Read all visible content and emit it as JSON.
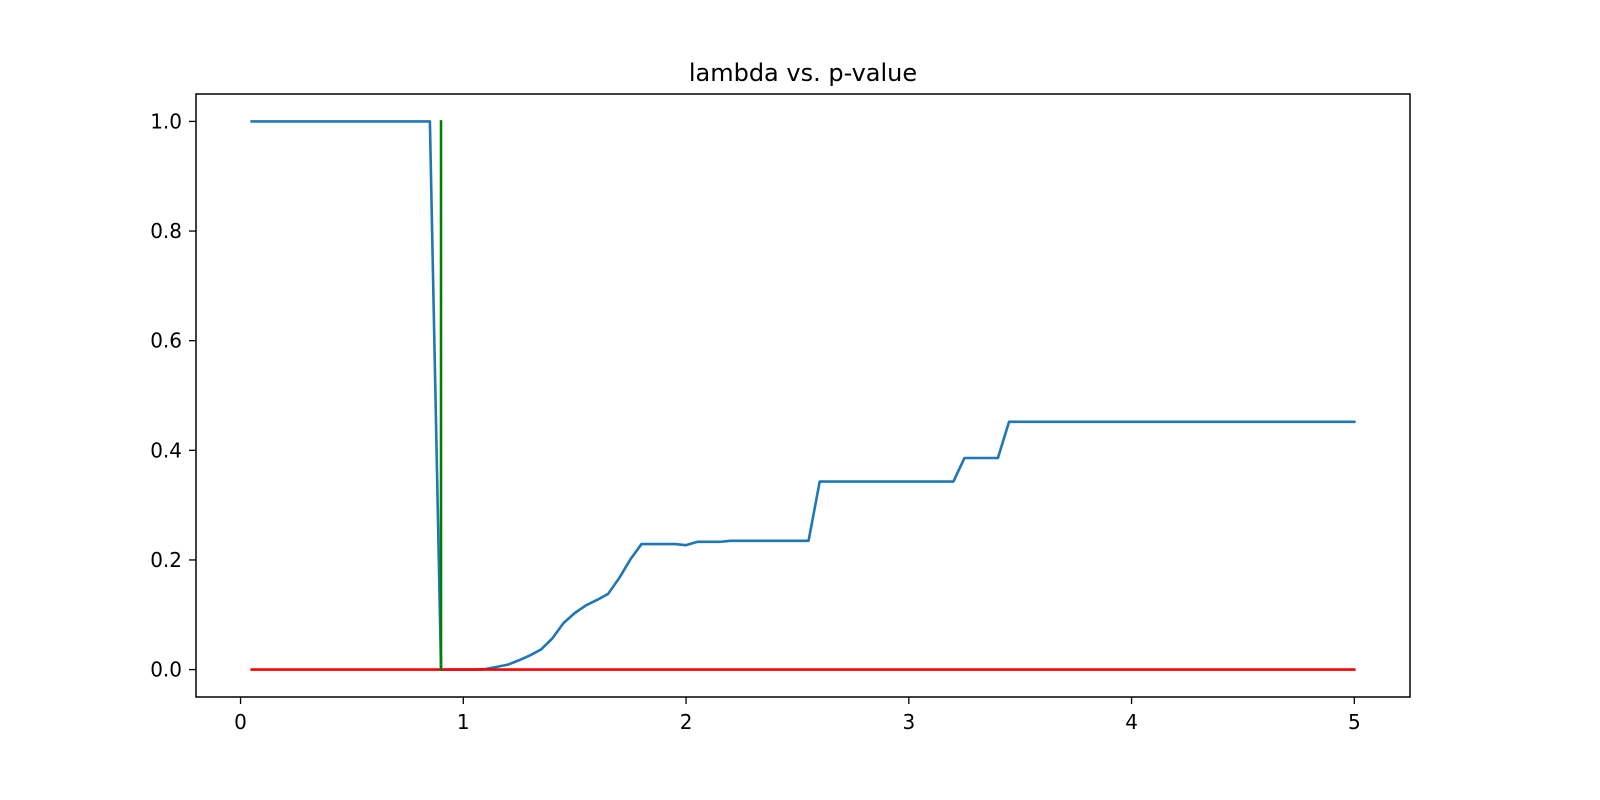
{
  "chart_data": {
    "type": "line",
    "title": "lambda vs. p-value",
    "xlabel": "",
    "ylabel": "",
    "xlim": [
      -0.2,
      5.25
    ],
    "ylim": [
      -0.05,
      1.05
    ],
    "x_ticks": [
      0,
      1,
      2,
      3,
      4,
      5
    ],
    "x_tick_labels": [
      "0",
      "1",
      "2",
      "3",
      "4",
      "5"
    ],
    "y_ticks": [
      0.0,
      0.2,
      0.4,
      0.6,
      0.8,
      1.0
    ],
    "y_tick_labels": [
      "0.0",
      "0.2",
      "0.4",
      "0.6",
      "0.8",
      "1.0"
    ],
    "grid": false,
    "legend": "none",
    "series": [
      {
        "color": "#1f77b4",
        "x": [
          0.05,
          0.85,
          0.9,
          0.95,
          1.0,
          1.05,
          1.1,
          1.15,
          1.2,
          1.25,
          1.3,
          1.35,
          1.4,
          1.45,
          1.5,
          1.55,
          1.6,
          1.65,
          1.7,
          1.75,
          1.8,
          1.85,
          1.9,
          1.95,
          2.0,
          2.05,
          2.1,
          2.15,
          2.2,
          2.25,
          2.3,
          2.35,
          2.4,
          2.45,
          2.5,
          2.55,
          2.6,
          2.65,
          2.7,
          2.75,
          2.8,
          2.85,
          2.9,
          2.95,
          3.0,
          3.05,
          3.1,
          3.15,
          3.2,
          3.25,
          3.3,
          3.35,
          3.4,
          3.45,
          3.5,
          3.6,
          3.8,
          4.0,
          4.2,
          4.4,
          4.6,
          4.8,
          5.0
        ],
        "y": [
          1.0,
          1.0,
          0.0,
          0.0,
          0.0,
          0.0,
          0.001,
          0.005,
          0.009,
          0.017,
          0.026,
          0.037,
          0.057,
          0.085,
          0.103,
          0.117,
          0.127,
          0.138,
          0.167,
          0.201,
          0.229,
          0.229,
          0.229,
          0.229,
          0.227,
          0.233,
          0.233,
          0.233,
          0.235,
          0.235,
          0.235,
          0.235,
          0.235,
          0.235,
          0.235,
          0.235,
          0.343,
          0.343,
          0.343,
          0.343,
          0.343,
          0.343,
          0.343,
          0.343,
          0.343,
          0.343,
          0.343,
          0.343,
          0.343,
          0.386,
          0.386,
          0.386,
          0.386,
          0.452,
          0.452,
          0.452,
          0.452,
          0.452,
          0.452,
          0.452,
          0.452,
          0.452,
          0.452
        ]
      },
      {
        "color": "#ff0000",
        "x": [
          0.05,
          5.0
        ],
        "y": [
          0.0,
          0.0
        ]
      },
      {
        "color": "#008000",
        "x": [
          0.9,
          0.9
        ],
        "y": [
          0.0,
          1.0
        ]
      }
    ]
  }
}
